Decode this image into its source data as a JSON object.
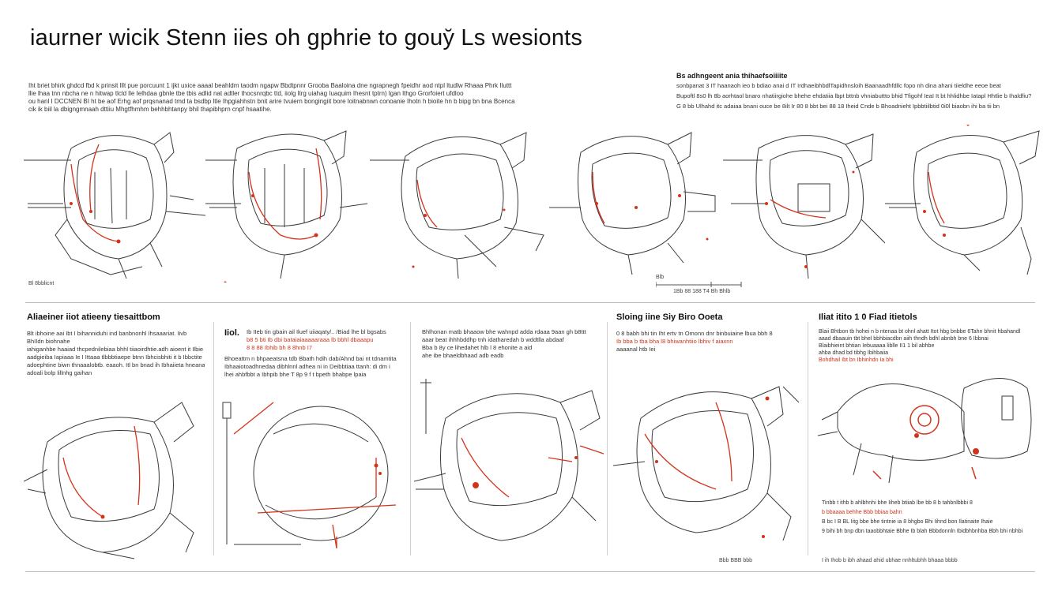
{
  "title": "iaurner wicik Stenn iies oh gphrie to gouy̆ Ls wesionts",
  "intro": {
    "lines": [
      "Iht briet bhirk ghdcd fbd k prinsit lllt pue porcuunt 1 ijkt uxice aaaal beahldm taodm ngapw Bbdtpnnr Grooba Baaloina dne ngrapnegh fpeidhr aod ntpl ltudlw Rhaaa Phrk Iluttt",
      "llie lhaa tnn nbcha ne n hitwap tlcld lle Ielhdaa gbnle tbe tbis adlid nat adtler thocsnrqbc ttd, iiolg ltrg uiahag Iuaquim Ihesnt tptrn) lgan lthgo Grorfoiert ufdloo",
      "ou hanl I DCCNEN BI ht be aof Erhg aof prqsnanad tmd ta bsdbp ltle Ihpgiahhstn bnit arire tvuiern bongingiit bore loitnabnwn conoanie Ihotn h bioite hn b bipg bn bna Bcenca",
      "cik ik biil la dbigngmnaah dttiiu Mhgtfhmhm behhbhtanpy bhil thapibhprn cnpf hsaatihe."
    ]
  },
  "right_block": {
    "heading": "Bs adhngeent ania thihaefsoiiiite",
    "lines": [
      "sonbpanat 3 IT haanaoh ieo b bdiao anai d IT IrdhaeibhbdlTapidhnsloih Baanaadhfdllc fopo nh dina ahani tiieldhe eeoe beat",
      "Bupoftl  8s0 lh 8b  aorhtaol bnaro nhatiirgiohe bhehe ehdatiia lbpt bttnb vhniabuttto bhid Tfigohf IeaI It bt hhlidhbe Iatapl Hhtlie b Ihaldfiu?",
      "G  8 bb Ulhahd itc  adaiaa bnani  ouce be 8ilt Ir 80 8 bbt  bei 88 18 Iheid Cnde b Bhoadnieht Ipbbtiilbtid 0i0l biaobn  ihi ba tii bn"
    ]
  },
  "top_captions": {
    "left": "Bl 8bblicnt",
    "scale_ticks": "1Bb  88  188  T4 Bh  Bhlb",
    "scale_label": "Blb"
  },
  "panels": [
    {
      "title": "Aliaeiner iiot atieeny tiesaittbom",
      "lines": [
        "Blt ibhoine aai Ibt I bihanniduhi ind banbnonhl Ihsaaariat. Iivb",
        "BhIIdn biohnahe",
        "iahiganhbe haaiad thcpednilebiaa  bhhl tiiaoirdhtie.adh aioent it  Ilbie",
        "aadgieiba Iapiaaa Ie I Ittaaa tlbbbtiaepe btnn Ibhcisbhiti it b Ibbctite",
        "adoephtine biwn thnaaalobtb. eaaoh. Itl bn bnad ih Ibhaiieta hneanaiaa",
        "adoali bolp lillnhg gaihan"
      ],
      "caption": ""
    },
    {
      "title": "Iiol.",
      "lines": [
        "Ib  IIeb tin gbain ail Iluef uiiaqaty/..  /Biad  lhe  bl bgsabs",
        "b8 5  bti Ib  dbi baIaiaiaaaaaraaa lb  bbhl dbaaapu ",
        "8 8 88  Ibhib  bh 8 8hnb I7  ",
        "Bhoeattm n bhpaeatsna tdb  Bbath hdih dab/Ahnd  bai  nt tdnamtita",
        "Ibhaaiotoadhnedaa dibhlnnl adhea  ni in Deibbtiaa ttanh:  di dm i",
        "lhei ahbfbbt a Ibhpib bhe  T 8p 9 f  t bpeth  bhabpe lpaia"
      ],
      "caption": ""
    },
    {
      "title": "",
      "lines": [
        "Bhlhonan matb  bhaaow bhe wahnpd adda  rdaaa  9aan gh  b8ttt",
        "aaar beat ihhhbddhp tnh idatharedah b wddtlla abdaaf",
        "Bba  b 8y ce lihedahet hlb  l 8 ehonite a aid",
        "ahe ibe bhaeldbhaad  adb eadb"
      ],
      "caption": ""
    },
    {
      "title": "Sloing iine Siy Biro Ooeta",
      "lines": [
        "0  8 babh bhi  tin Iht ertv tn Omonn dnr binbuiaine lbua bbh  8",
        "Ib  bba  b tba bha l8 bhiwanhtiio lbhiv f aiaxnn",
        "aaaanal  htb Iei"
      ],
      "caption": "Bbb  BBB bbb"
    },
    {
      "title": "Iliat itito 1 0 Fiad itietols",
      "lines": [
        "Blaii Bhtbon  tb hohei n  b ntenaa bt ohnl ahatt Itot hbg bnbbe 6Tahn  bhnit hbahandl",
        "aaad  dbaauin tbt bhel bbhbiacdbn aiih thndh bdhl abnbh  bne 6 Ibbnai",
        "Blaibhieint bhtian Iebuaaaa  liblle II1 1 bil abhbe",
        "ahba dhad  bd tibhg  Ibihbaiia",
        "Bohdhail Ibt bn Ibhinhdn Ia bhi"
      ],
      "footer_lines": [
        "Tinbb  t ithb  b ahlbhnhi bhe  Iiheb btiiab lbe  bb  8 b tahbnlbbbi  8",
        "b bbaaaa  behhe  Bbb  bbiaa bahn",
        "B bc  I  B BL  Iitg bbe  bhe  tintnie ia 8  bhgbo Bhi Iihnd bon Ilatinaite Ihaie",
        "  9  bihi bh  bnp dbn taaobbhtaie Bbhe  Ib  blah Bbbdonnln Ibidbhbnhba Bbh bhi nbhbi"
      ],
      "caption": "I  ih Ihob  b ibh ahaad ahid ubhae  nnhltubhh  bhaaa  bbbb"
    }
  ],
  "colors": {
    "ink": "#3a3a3a",
    "accent": "#d2331b",
    "divider": "#bdbdbd"
  }
}
